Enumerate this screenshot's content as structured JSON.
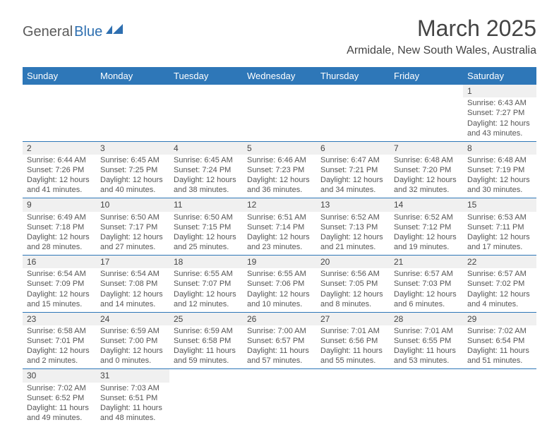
{
  "logo": {
    "part1": "General",
    "part2": "Blue"
  },
  "title": "March 2025",
  "location": "Armidale, New South Wales, Australia",
  "colors": {
    "brand_blue": "#2e77b8",
    "logo_blue": "#2e6fb0",
    "text_gray": "#555555",
    "shade": "#f0f0f0"
  },
  "day_headers": [
    "Sunday",
    "Monday",
    "Tuesday",
    "Wednesday",
    "Thursday",
    "Friday",
    "Saturday"
  ],
  "weeks": [
    [
      {
        "empty": true
      },
      {
        "empty": true
      },
      {
        "empty": true
      },
      {
        "empty": true
      },
      {
        "empty": true
      },
      {
        "empty": true
      },
      {
        "n": "1",
        "sr": "6:43 AM",
        "ss": "7:27 PM",
        "dl": "12 hours and 43 minutes."
      }
    ],
    [
      {
        "n": "2",
        "sr": "6:44 AM",
        "ss": "7:26 PM",
        "dl": "12 hours and 41 minutes."
      },
      {
        "n": "3",
        "sr": "6:45 AM",
        "ss": "7:25 PM",
        "dl": "12 hours and 40 minutes."
      },
      {
        "n": "4",
        "sr": "6:45 AM",
        "ss": "7:24 PM",
        "dl": "12 hours and 38 minutes."
      },
      {
        "n": "5",
        "sr": "6:46 AM",
        "ss": "7:23 PM",
        "dl": "12 hours and 36 minutes."
      },
      {
        "n": "6",
        "sr": "6:47 AM",
        "ss": "7:21 PM",
        "dl": "12 hours and 34 minutes."
      },
      {
        "n": "7",
        "sr": "6:48 AM",
        "ss": "7:20 PM",
        "dl": "12 hours and 32 minutes."
      },
      {
        "n": "8",
        "sr": "6:48 AM",
        "ss": "7:19 PM",
        "dl": "12 hours and 30 minutes."
      }
    ],
    [
      {
        "n": "9",
        "sr": "6:49 AM",
        "ss": "7:18 PM",
        "dl": "12 hours and 28 minutes."
      },
      {
        "n": "10",
        "sr": "6:50 AM",
        "ss": "7:17 PM",
        "dl": "12 hours and 27 minutes."
      },
      {
        "n": "11",
        "sr": "6:50 AM",
        "ss": "7:15 PM",
        "dl": "12 hours and 25 minutes."
      },
      {
        "n": "12",
        "sr": "6:51 AM",
        "ss": "7:14 PM",
        "dl": "12 hours and 23 minutes."
      },
      {
        "n": "13",
        "sr": "6:52 AM",
        "ss": "7:13 PM",
        "dl": "12 hours and 21 minutes."
      },
      {
        "n": "14",
        "sr": "6:52 AM",
        "ss": "7:12 PM",
        "dl": "12 hours and 19 minutes."
      },
      {
        "n": "15",
        "sr": "6:53 AM",
        "ss": "7:11 PM",
        "dl": "12 hours and 17 minutes."
      }
    ],
    [
      {
        "n": "16",
        "sr": "6:54 AM",
        "ss": "7:09 PM",
        "dl": "12 hours and 15 minutes."
      },
      {
        "n": "17",
        "sr": "6:54 AM",
        "ss": "7:08 PM",
        "dl": "12 hours and 14 minutes."
      },
      {
        "n": "18",
        "sr": "6:55 AM",
        "ss": "7:07 PM",
        "dl": "12 hours and 12 minutes."
      },
      {
        "n": "19",
        "sr": "6:55 AM",
        "ss": "7:06 PM",
        "dl": "12 hours and 10 minutes."
      },
      {
        "n": "20",
        "sr": "6:56 AM",
        "ss": "7:05 PM",
        "dl": "12 hours and 8 minutes."
      },
      {
        "n": "21",
        "sr": "6:57 AM",
        "ss": "7:03 PM",
        "dl": "12 hours and 6 minutes."
      },
      {
        "n": "22",
        "sr": "6:57 AM",
        "ss": "7:02 PM",
        "dl": "12 hours and 4 minutes."
      }
    ],
    [
      {
        "n": "23",
        "sr": "6:58 AM",
        "ss": "7:01 PM",
        "dl": "12 hours and 2 minutes."
      },
      {
        "n": "24",
        "sr": "6:59 AM",
        "ss": "7:00 PM",
        "dl": "12 hours and 0 minutes."
      },
      {
        "n": "25",
        "sr": "6:59 AM",
        "ss": "6:58 PM",
        "dl": "11 hours and 59 minutes."
      },
      {
        "n": "26",
        "sr": "7:00 AM",
        "ss": "6:57 PM",
        "dl": "11 hours and 57 minutes."
      },
      {
        "n": "27",
        "sr": "7:01 AM",
        "ss": "6:56 PM",
        "dl": "11 hours and 55 minutes."
      },
      {
        "n": "28",
        "sr": "7:01 AM",
        "ss": "6:55 PM",
        "dl": "11 hours and 53 minutes."
      },
      {
        "n": "29",
        "sr": "7:02 AM",
        "ss": "6:54 PM",
        "dl": "11 hours and 51 minutes."
      }
    ],
    [
      {
        "n": "30",
        "sr": "7:02 AM",
        "ss": "6:52 PM",
        "dl": "11 hours and 49 minutes."
      },
      {
        "n": "31",
        "sr": "7:03 AM",
        "ss": "6:51 PM",
        "dl": "11 hours and 48 minutes."
      },
      {
        "empty": true
      },
      {
        "empty": true
      },
      {
        "empty": true
      },
      {
        "empty": true
      },
      {
        "empty": true
      }
    ]
  ],
  "labels": {
    "sunrise": "Sunrise:",
    "sunset": "Sunset:",
    "daylight": "Daylight:"
  }
}
